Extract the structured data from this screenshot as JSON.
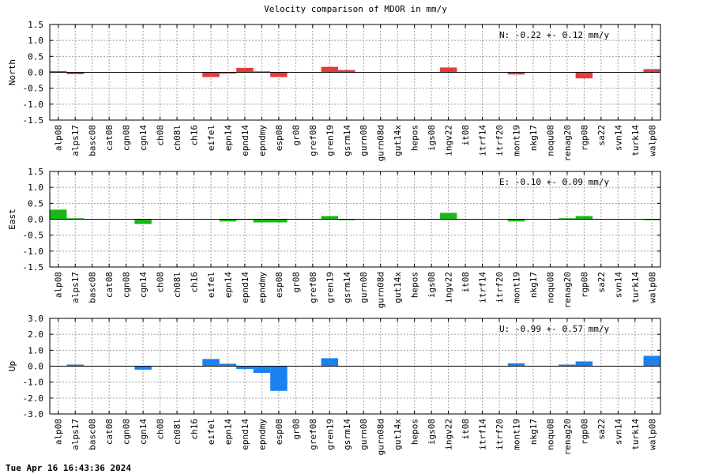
{
  "title": "Velocity comparison of MDOR in mm/y",
  "timestamp": "Tue Apr 16 16:43:36 2024",
  "chart_data": [
    {
      "type": "bar",
      "ylabel": "North",
      "color": "#e83a3a",
      "ylim": [
        -1.5,
        1.5
      ],
      "yticks": [
        -1.5,
        -1.0,
        -0.5,
        0.0,
        0.5,
        1.0,
        1.5
      ],
      "ytick_labels": [
        "-1.5",
        "-1.0",
        "-0.5",
        "0.0",
        "0.5",
        "1.0",
        "1.5"
      ],
      "grid": true,
      "annotation": "N:  -0.22 +-  0.12 mm/y",
      "categories": [
        "alp08",
        "alps17",
        "basc08",
        "cat08",
        "cgn08",
        "cgn14",
        "ch08",
        "ch08l",
        "ch16",
        "eifel",
        "epn14",
        "epnd14",
        "epndmy",
        "esp08",
        "gr08",
        "gref08",
        "gren19",
        "gsrm14",
        "gurn08",
        "gurn08d",
        "gut14x",
        "hepos",
        "igs08",
        "ingv22",
        "it08",
        "itrf14",
        "itrf20",
        "mont19",
        "nkg17",
        "noqu08",
        "renag20",
        "rgp08",
        "sa22",
        "svn14",
        "turk14",
        "walp08"
      ],
      "values": [
        0.04,
        -0.06,
        0,
        0,
        0,
        0,
        0,
        0,
        0,
        -0.15,
        -0.04,
        0.14,
        0.03,
        -0.15,
        0,
        0,
        0.17,
        0.07,
        0,
        0,
        0,
        0,
        0,
        0.15,
        0,
        0,
        0,
        -0.07,
        0,
        0,
        0,
        -0.19,
        0,
        0,
        0,
        0.1
      ]
    },
    {
      "type": "bar",
      "ylabel": "East",
      "color": "#18b818",
      "ylim": [
        -1.5,
        1.5
      ],
      "yticks": [
        -1.5,
        -1.0,
        -0.5,
        0.0,
        0.5,
        1.0,
        1.5
      ],
      "ytick_labels": [
        "-1.5",
        "-1.0",
        "-0.5",
        "0.0",
        "0.5",
        "1.0",
        "1.5"
      ],
      "grid": true,
      "annotation": "E:  -0.10 +-  0.09 mm/y",
      "categories": [
        "alp08",
        "alps17",
        "basc08",
        "cat08",
        "cgn08",
        "cgn14",
        "ch08",
        "ch08l",
        "ch16",
        "eifel",
        "epn14",
        "epnd14",
        "epndmy",
        "esp08",
        "gr08",
        "gref08",
        "gren19",
        "gsrm14",
        "gurn08",
        "gurn08d",
        "gut14x",
        "hepos",
        "igs08",
        "ingv22",
        "it08",
        "itrf14",
        "itrf20",
        "mont19",
        "nkg17",
        "noqu08",
        "renag20",
        "rgp08",
        "sa22",
        "svn14",
        "turk14",
        "walp08"
      ],
      "values": [
        0.3,
        0.03,
        0,
        0,
        0,
        -0.15,
        0,
        0,
        0,
        0,
        -0.07,
        -0.02,
        -0.1,
        -0.1,
        0,
        0,
        0.1,
        -0.03,
        0,
        0,
        0,
        0,
        0,
        0.2,
        0,
        0,
        0,
        -0.07,
        0,
        0,
        0.03,
        0.1,
        0,
        0,
        0,
        -0.03
      ]
    },
    {
      "type": "bar",
      "ylabel": "Up",
      "color": "#1a82f0",
      "ylim": [
        -3.0,
        3.0
      ],
      "yticks": [
        -3.0,
        -2.0,
        -1.0,
        0.0,
        1.0,
        2.0,
        3.0
      ],
      "ytick_labels": [
        "-3.0",
        "-2.0",
        "-1.0",
        "0.0",
        "1.0",
        "2.0",
        "3.0"
      ],
      "grid": true,
      "annotation": "U:  -0.99 +-  0.57 mm/y",
      "categories": [
        "alp08",
        "alps17",
        "basc08",
        "cat08",
        "cgn08",
        "cgn14",
        "ch08",
        "ch08l",
        "ch16",
        "eifel",
        "epn14",
        "epnd14",
        "epndmy",
        "esp08",
        "gr08",
        "gref08",
        "gren19",
        "gsrm14",
        "gurn08",
        "gurn08d",
        "gut14x",
        "hepos",
        "igs08",
        "ingv22",
        "it08",
        "itrf14",
        "itrf20",
        "mont19",
        "nkg17",
        "noqu08",
        "renag20",
        "rgp08",
        "sa22",
        "svn14",
        "turk14",
        "walp08"
      ],
      "values": [
        0,
        0.1,
        0,
        0,
        0,
        -0.22,
        0,
        0,
        0,
        0.45,
        0.15,
        -0.18,
        -0.42,
        -1.55,
        0,
        0,
        0.5,
        0,
        0,
        0,
        0,
        0,
        0,
        0,
        0,
        0,
        0,
        0.18,
        0,
        0,
        0.1,
        0.3,
        0,
        0,
        0,
        0.65
      ]
    }
  ]
}
